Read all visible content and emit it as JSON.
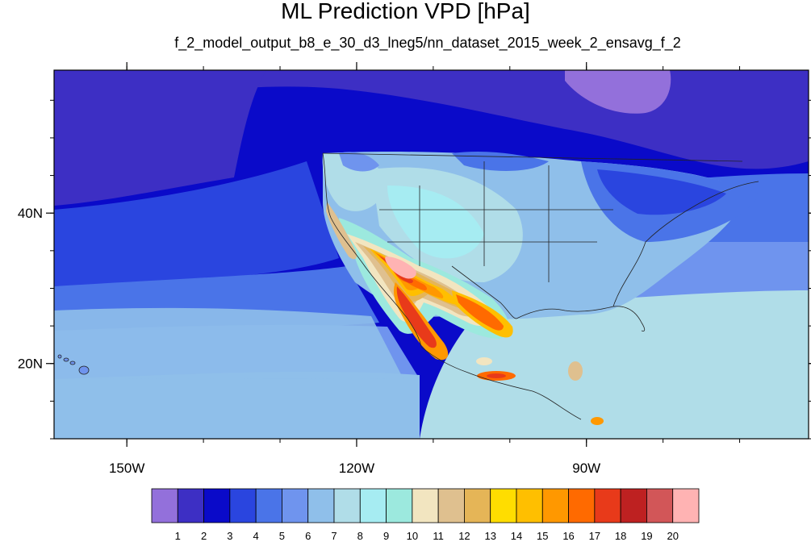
{
  "title": "ML Prediction VPD [hPa]",
  "subtitle": "f_2_model_output_b8_e_30_d3_lneg5/nn_dataset_2015_week_2_ensavg_f_2",
  "axes": {
    "x_ticks": [
      {
        "lon": -150,
        "label": "150W"
      },
      {
        "lon": -120,
        "label": "120W"
      },
      {
        "lon": -90,
        "label": "90W"
      }
    ],
    "y_ticks": [
      {
        "lat": 40,
        "label": "40N"
      },
      {
        "lat": 20,
        "label": "20N"
      }
    ],
    "lon_range": [
      -159.5,
      -61
    ],
    "lat_range": [
      10,
      59
    ]
  },
  "colorbar": {
    "colors": [
      "#9370db",
      "#3d2fc4",
      "#0a0ac9",
      "#2a45df",
      "#4a74e8",
      "#6f94ee",
      "#8fbfea",
      "#b0dde8",
      "#a6ecf2",
      "#9ce9de",
      "#f2e5c0",
      "#dfc08f",
      "#e5b557",
      "#ffdd00",
      "#ffbf00",
      "#ff9800",
      "#ff6a00",
      "#e83a1a",
      "#be2121",
      "#d25658",
      "#ffb3b3"
    ],
    "labels": [
      "1",
      "2",
      "3",
      "4",
      "5",
      "6",
      "7",
      "8",
      "9",
      "10",
      "11",
      "12",
      "13",
      "14",
      "15",
      "16",
      "17",
      "18",
      "19",
      "20"
    ]
  }
}
